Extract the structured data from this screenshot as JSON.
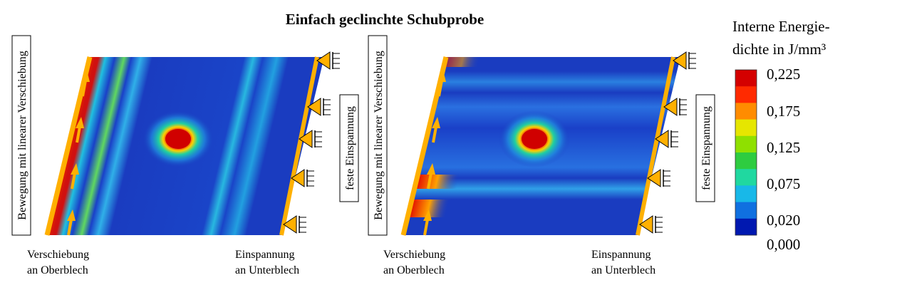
{
  "title": "Einfach geclinchte Schubprobe",
  "panels": [
    {
      "left_box": "Bewegung mit linearer Verschiebung",
      "right_box": "feste Einspannung",
      "bottom_left": [
        "Verschiebung",
        "an Oberblech"
      ],
      "bottom_right": [
        "Einspannung",
        "an Unterblech"
      ]
    },
    {
      "left_box": "Bewegung mit linearer Verschiebung",
      "right_box": "feste Einspannung",
      "bottom_left": [
        "Verschiebung",
        "an Oberblech"
      ],
      "bottom_right": [
        "Einspannung",
        "an Unterblech"
      ]
    }
  ],
  "legend": {
    "title": [
      "Interne Energie-",
      "dichte in J/mm³"
    ],
    "ticks": [
      "0,225",
      "0,175",
      "0,125",
      "0,075",
      "0,020",
      "0,000"
    ],
    "colors": [
      "#d40000",
      "#ff2a00",
      "#ff8c00",
      "#e6e600",
      "#8fe000",
      "#2ecc40",
      "#20d8a0",
      "#18b8e8",
      "#1070e0",
      "#0018b0"
    ]
  }
}
